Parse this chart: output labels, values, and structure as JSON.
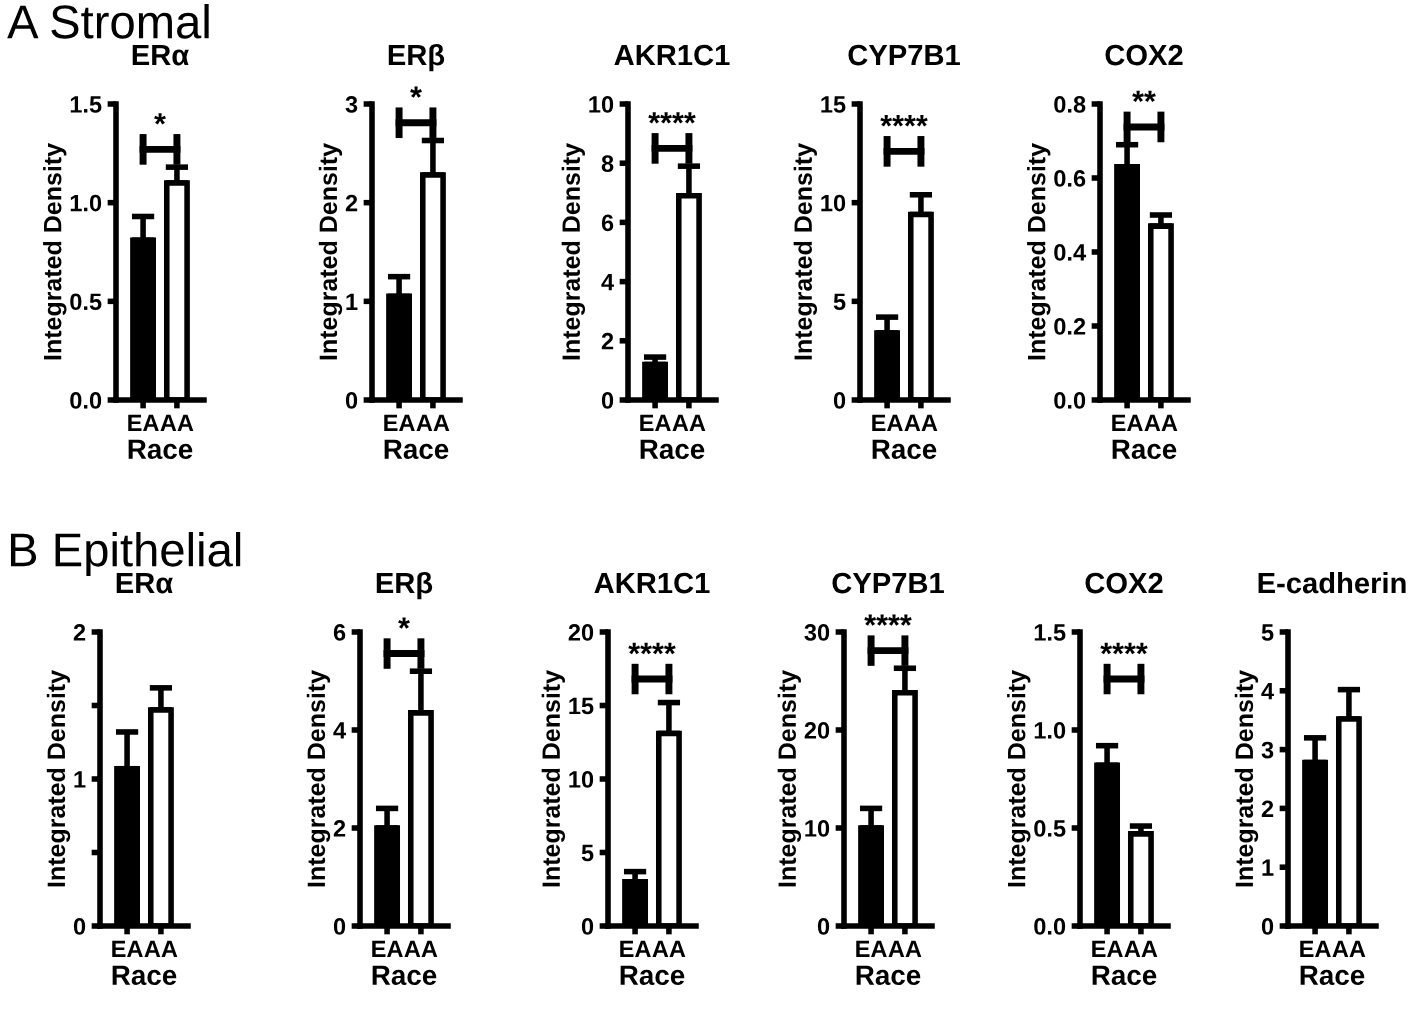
{
  "chart_data": [
    {
      "type": "bar",
      "title": "ERα",
      "annotations": [
        "A Stromal",
        "*"
      ],
      "xlabel": "Race",
      "ylabel": "Integrated Density",
      "categories": [
        "EA",
        "AA"
      ],
      "values": [
        0.81,
        1.1
      ],
      "errors": [
        [
          0.81,
          0.93
        ],
        [
          1.1,
          1.18
        ]
      ],
      "colors": [
        "#000000",
        "#ffffff"
      ],
      "ylim": [
        0,
        1.5
      ],
      "yticks": [
        {
          "value": 0,
          "label": "0.0"
        },
        {
          "value": 0.5,
          "label": "0.5"
        },
        {
          "value": 1,
          "label": "1.0"
        },
        {
          "value": 1.5,
          "label": "1.5"
        }
      ],
      "grid": false,
      "legend": false
    },
    {
      "type": "bar",
      "title": "ERβ",
      "annotations": [
        "*"
      ],
      "xlabel": "Race",
      "ylabel": "Integrated Density",
      "categories": [
        "EA",
        "AA"
      ],
      "values": [
        1.05,
        2.28
      ],
      "errors": [
        [
          1.05,
          1.25
        ],
        [
          2.28,
          2.63
        ]
      ],
      "colors": [
        "#000000",
        "#ffffff"
      ],
      "ylim": [
        0,
        3
      ],
      "yticks": [
        0,
        1,
        2,
        3
      ],
      "grid": false,
      "legend": false
    },
    {
      "type": "bar",
      "title": "AKR1C1",
      "annotations": [
        "****"
      ],
      "xlabel": "Race",
      "ylabel": "Integrated Density",
      "categories": [
        "EA",
        "AA"
      ],
      "values": [
        1.2,
        6.9
      ],
      "errors": [
        [
          1.2,
          1.45
        ],
        [
          6.9,
          7.9
        ]
      ],
      "colors": [
        "#000000",
        "#ffffff"
      ],
      "ylim": [
        0,
        10
      ],
      "yticks": [
        0,
        2,
        4,
        6,
        8,
        10
      ],
      "grid": false,
      "legend": false
    },
    {
      "type": "bar",
      "title": "CYP7B1",
      "annotations": [
        "****"
      ],
      "xlabel": "Race",
      "ylabel": "Integrated Density",
      "categories": [
        "EA",
        "AA"
      ],
      "values": [
        3.4,
        9.4
      ],
      "errors": [
        [
          3.4,
          4.2
        ],
        [
          9.4,
          10.4
        ]
      ],
      "colors": [
        "#000000",
        "#ffffff"
      ],
      "ylim": [
        0,
        15
      ],
      "yticks": [
        0,
        5,
        10,
        15
      ],
      "grid": false,
      "legend": false
    },
    {
      "type": "bar",
      "title": "COX2",
      "annotations": [
        "**"
      ],
      "xlabel": "Race",
      "ylabel": "Integrated Density",
      "categories": [
        "EA",
        "AA"
      ],
      "values": [
        0.63,
        0.47
      ],
      "errors": [
        [
          0.63,
          0.69
        ],
        [
          0.47,
          0.5
        ]
      ],
      "colors": [
        "#000000",
        "#ffffff"
      ],
      "ylim": [
        0,
        0.8
      ],
      "yticks": [
        {
          "value": 0,
          "label": "0.0"
        },
        {
          "value": 0.2,
          "label": "0.2"
        },
        {
          "value": 0.4,
          "label": "0.4"
        },
        {
          "value": 0.6,
          "label": "0.6"
        },
        {
          "value": 0.8,
          "label": "0.8"
        }
      ],
      "grid": false,
      "legend": false
    },
    {
      "type": "bar",
      "title": "ERα",
      "annotations": [
        "B Epithelial"
      ],
      "xlabel": "Race",
      "ylabel": "Integrated Density",
      "categories": [
        "EA",
        "AA"
      ],
      "values": [
        1.07,
        1.47
      ],
      "errors": [
        [
          1.07,
          1.32
        ],
        [
          1.47,
          1.62
        ]
      ],
      "colors": [
        "#000000",
        "#ffffff"
      ],
      "ylim": [
        0,
        2
      ],
      "yticks": [
        0,
        {
          "value": 0.5,
          "label": null
        },
        1,
        {
          "value": 1.5,
          "label": null
        },
        2
      ],
      "grid": false,
      "legend": false
    },
    {
      "type": "bar",
      "title": "ERβ",
      "annotations": [
        "*"
      ],
      "xlabel": "Race",
      "ylabel": "Integrated Density",
      "categories": [
        "EA",
        "AA"
      ],
      "values": [
        2.0,
        4.35
      ],
      "errors": [
        [
          2.0,
          2.4
        ],
        [
          4.35,
          5.2
        ]
      ],
      "colors": [
        "#000000",
        "#ffffff"
      ],
      "ylim": [
        0,
        6
      ],
      "yticks": [
        0,
        2,
        4,
        6
      ],
      "grid": false,
      "legend": false
    },
    {
      "type": "bar",
      "title": "AKR1C1",
      "annotations": [
        "****"
      ],
      "xlabel": "Race",
      "ylabel": "Integrated Density",
      "categories": [
        "EA",
        "AA"
      ],
      "values": [
        3.0,
        13.1
      ],
      "errors": [
        [
          3.0,
          3.7
        ],
        [
          13.1,
          15.2
        ]
      ],
      "colors": [
        "#000000",
        "#ffffff"
      ],
      "ylim": [
        0,
        20
      ],
      "yticks": [
        0,
        5,
        10,
        15,
        20
      ],
      "grid": false,
      "legend": false
    },
    {
      "type": "bar",
      "title": "CYP7B1",
      "annotations": [
        "****"
      ],
      "xlabel": "Race",
      "ylabel": "Integrated Density",
      "categories": [
        "EA",
        "AA"
      ],
      "values": [
        10.0,
        23.8
      ],
      "errors": [
        [
          10.0,
          12.0
        ],
        [
          23.8,
          26.3
        ]
      ],
      "colors": [
        "#000000",
        "#ffffff"
      ],
      "ylim": [
        0,
        30
      ],
      "yticks": [
        0,
        10,
        20,
        30
      ],
      "grid": false,
      "legend": false
    },
    {
      "type": "bar",
      "title": "COX2",
      "annotations": [
        "****"
      ],
      "xlabel": "Race",
      "ylabel": "Integrated Density",
      "categories": [
        "EA",
        "AA"
      ],
      "values": [
        0.82,
        0.47
      ],
      "errors": [
        [
          0.82,
          0.92
        ],
        [
          0.47,
          0.51
        ]
      ],
      "colors": [
        "#000000",
        "#ffffff"
      ],
      "ylim": [
        0,
        1.5
      ],
      "yticks": [
        {
          "value": 0,
          "label": "0.0"
        },
        {
          "value": 0.5,
          "label": "0.5"
        },
        {
          "value": 1,
          "label": "1.0"
        },
        {
          "value": 1.5,
          "label": "1.5"
        }
      ],
      "grid": false,
      "legend": false
    },
    {
      "type": "bar",
      "title": "E-cadherin",
      "xlabel": "Race",
      "ylabel": "Integrated Density",
      "categories": [
        "EA",
        "AA"
      ],
      "values": [
        2.78,
        3.52
      ],
      "errors": [
        [
          2.78,
          3.2
        ],
        [
          3.52,
          4.02
        ]
      ],
      "colors": [
        "#000000",
        "#ffffff"
      ],
      "ylim": [
        0,
        5
      ],
      "yticks": [
        0,
        1,
        2,
        3,
        4,
        5
      ],
      "grid": false,
      "legend": false
    }
  ]
}
